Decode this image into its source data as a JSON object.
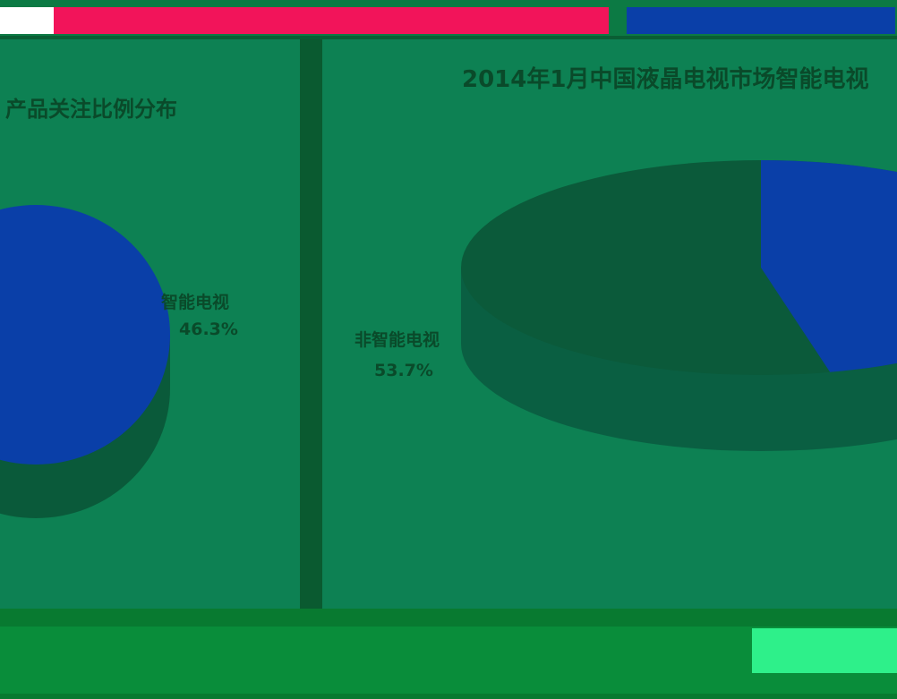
{
  "window": {
    "colors": {
      "title_pink": "#f2145a",
      "title_blue": "#0a3fa8",
      "frame_green": "#0c7a44",
      "divider": "#0a5a30"
    }
  },
  "chart_data": [
    {
      "type": "pie",
      "title": "产品关注比例分布",
      "labels": [
        "智能电视"
      ],
      "values": [
        46.3
      ],
      "value_labels": [
        "46.3%"
      ],
      "colors": [
        "#0a3fa8"
      ]
    },
    {
      "type": "pie",
      "title": "2014年1月中国液晶电视市场智能电视",
      "labels": [
        "非智能电视"
      ],
      "values": [
        53.7
      ],
      "value_labels": [
        "53.7%"
      ],
      "colors": [
        "#0b5a3a",
        "#0a3fa8"
      ]
    }
  ]
}
